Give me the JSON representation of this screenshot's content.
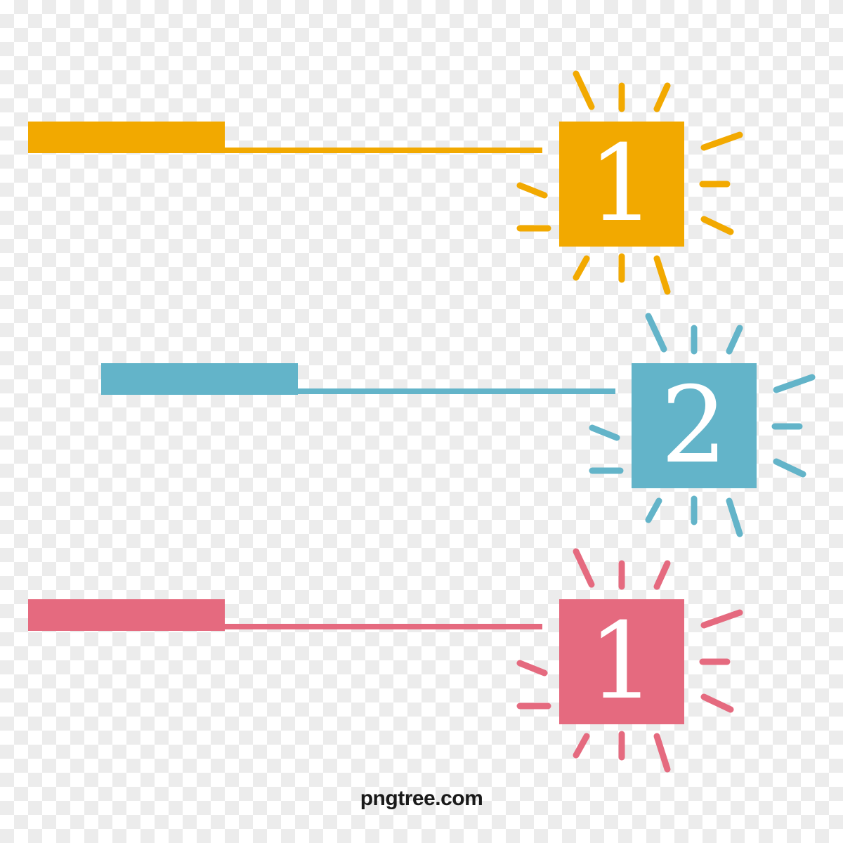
{
  "items": [
    {
      "number": "1",
      "color": "#F2A900",
      "stroke_color": "#F2A900"
    },
    {
      "number": "2",
      "color": "#63B4C9",
      "stroke_color": "#63B4C9"
    },
    {
      "number": "1",
      "color": "#E56A7F",
      "stroke_color": "#E56A7F"
    }
  ],
  "watermark": "pngtree.com"
}
